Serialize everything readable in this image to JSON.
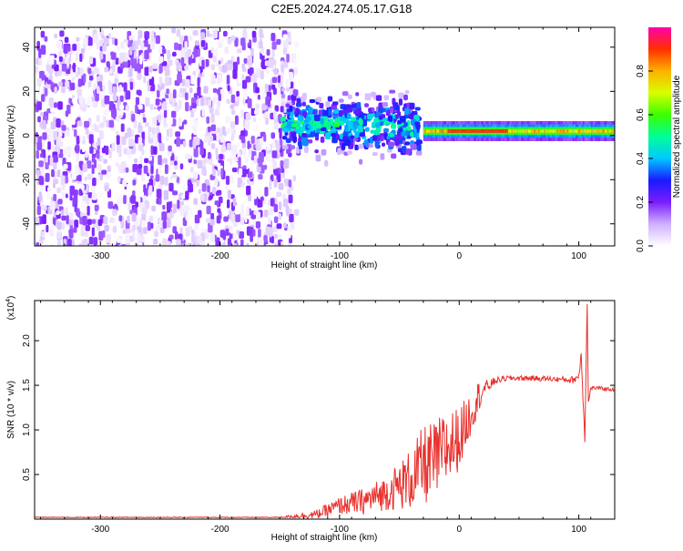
{
  "figure": {
    "title": "C2E5.2024.274.05.17.G18"
  },
  "colors": {
    "axis": "#000000",
    "snr_line": "#e8302c",
    "background": "#ffffff"
  },
  "chart_data": [
    {
      "type": "heatmap",
      "xlabel": "Height of straight line (km)",
      "ylabel": "Frequency (Hz)",
      "xlim": [
        -355,
        130
      ],
      "ylim": [
        -50,
        49
      ],
      "x_ticks": [
        -300,
        -200,
        -100,
        0,
        100
      ],
      "y_ticks": [
        -40,
        -20,
        0,
        20,
        40
      ],
      "colorbar": {
        "label": "Normalized spectral amplitude",
        "range": [
          0,
          1
        ],
        "ticks": [
          "0.0",
          "0.2",
          "0.4",
          "0.6",
          "0.8"
        ],
        "tick_values": [
          0.0,
          0.2,
          0.4,
          0.6,
          0.8
        ],
        "colormap": [
          "#ffffff",
          "#cfb0ff",
          "#7a1dff",
          "#1a1aff",
          "#00c8ff",
          "#00ff9a",
          "#3cff00",
          "#d8ff00",
          "#ffb000",
          "#ff3000",
          "#ff00a8"
        ]
      },
      "regions": [
        {
          "name": "noise",
          "x_range": [
            -355,
            -138
          ],
          "y_range": [
            -50,
            49
          ],
          "amplitude": 0.15
        },
        {
          "name": "cluster",
          "x_range": [
            -150,
            -35
          ],
          "y_center": 6,
          "y_halfwidth": 12,
          "amplitude": 0.45
        },
        {
          "name": "tone",
          "x_range": [
            -30,
            130
          ],
          "y_center": 2,
          "amplitude": 0.9
        }
      ]
    },
    {
      "type": "line",
      "xlabel": "Height of straight line (km)",
      "ylabel": "SNR (10 * v/v)",
      "y_scale_label": "(x10",
      "y_scale_exponent": "4",
      "scale": 10000,
      "xlim": [
        -355,
        130
      ],
      "ylim": [
        0,
        2.45
      ],
      "x_ticks": [
        -300,
        -200,
        -100,
        0,
        100
      ],
      "y_ticks": [
        "0.5",
        "1.0",
        "1.5",
        "2.0"
      ],
      "y_tick_values": [
        0.5,
        1.0,
        1.5,
        2.0
      ],
      "series": [
        {
          "x": [
            -355,
            -300,
            -200,
            -150,
            -120,
            -100,
            -80,
            -60,
            -40,
            -30,
            -20,
            -10,
            0,
            5,
            10,
            15,
            20,
            30,
            40,
            60,
            80,
            95,
            100,
            102,
            105,
            107,
            108,
            110,
            115,
            130
          ],
          "y": [
            0.02,
            0.02,
            0.02,
            0.02,
            0.05,
            0.15,
            0.2,
            0.3,
            0.45,
            0.6,
            0.65,
            0.8,
            0.9,
            1.05,
            1.2,
            1.35,
            1.45,
            1.55,
            1.58,
            1.58,
            1.57,
            1.56,
            1.6,
            1.85,
            0.9,
            2.45,
            1.3,
            1.47,
            1.47,
            1.45
          ],
          "noise": [
            0.005,
            0.005,
            0.005,
            0.005,
            0.05,
            0.1,
            0.15,
            0.2,
            0.35,
            0.45,
            0.45,
            0.45,
            0.35,
            0.3,
            0.25,
            0.2,
            0.1,
            0.04,
            0.03,
            0.03,
            0.03,
            0.04,
            0.05,
            0.05,
            0.05,
            0.05,
            0.03,
            0.02,
            0.02,
            0.02
          ]
        }
      ]
    }
  ]
}
